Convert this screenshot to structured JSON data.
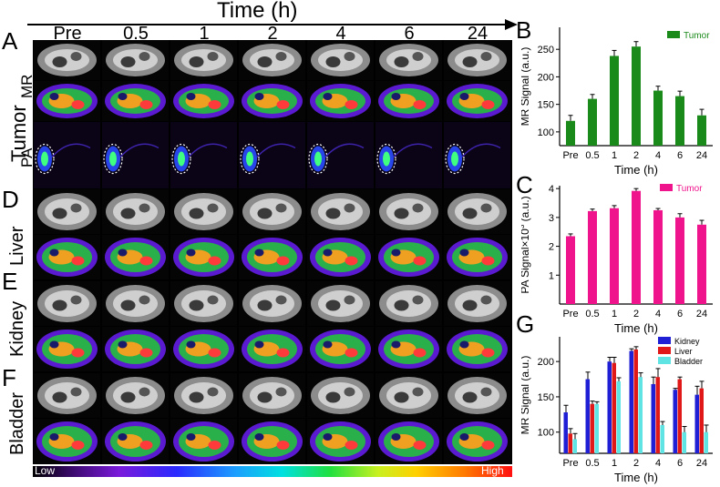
{
  "time_axis_title": "Time (h)",
  "time_points": [
    "Pre",
    "0.5",
    "1",
    "2",
    "4",
    "6",
    "24"
  ],
  "panel_letters": {
    "a": "A",
    "b": "B",
    "c": "C",
    "d": "D",
    "e": "E",
    "f": "F",
    "g": "G"
  },
  "row_labels": {
    "tumor": "Tumor",
    "mr": "MR",
    "pa": "PA",
    "liver": "Liver",
    "kidney": "Kidney",
    "bladder": "Bladder"
  },
  "colorbar": {
    "low": "Low",
    "high": "High"
  },
  "colors": {
    "tumor_bar": "#1a8a1a",
    "pa_bar": "#f0148c",
    "kidney": "#1f1fd6",
    "liver": "#e01818",
    "bladder": "#5fe3e3"
  },
  "chart_data": [
    {
      "type": "bar",
      "panel": "B",
      "categories": [
        "Pre",
        "0.5",
        "1",
        "2",
        "4",
        "6",
        "24"
      ],
      "series": [
        {
          "name": "Tumor",
          "values": [
            120,
            160,
            238,
            255,
            175,
            165,
            130
          ],
          "errors": [
            10,
            8,
            10,
            9,
            8,
            9,
            11
          ]
        }
      ],
      "xlabel": "Time (h)",
      "ylabel": "MR Signal (a.u.)",
      "ylim": [
        75,
        290
      ],
      "yticks": [
        100,
        150,
        200,
        250
      ],
      "legend": "top-right"
    },
    {
      "type": "bar",
      "panel": "C",
      "categories": [
        "Pre",
        "0.5",
        "1",
        "2",
        "4",
        "6",
        "24"
      ],
      "series": [
        {
          "name": "Tumor",
          "values": [
            2.35,
            3.22,
            3.32,
            3.92,
            3.25,
            3.0,
            2.75
          ],
          "errors": [
            0.08,
            0.07,
            0.09,
            0.08,
            0.06,
            0.13,
            0.15
          ]
        }
      ],
      "xlabel": "Time (h)",
      "ylabel": "PA Signal×10",
      "ylabel_superscript": "3",
      "ylabel_unit": " (a.u.)",
      "ylim": [
        0,
        4.1
      ],
      "yticks": [
        1,
        2,
        3,
        4
      ],
      "legend": "top-right"
    },
    {
      "type": "bar",
      "panel": "G",
      "categories": [
        "Pre",
        "0.5",
        "1",
        "2",
        "4",
        "6",
        "24"
      ],
      "series": [
        {
          "name": "Kidney",
          "values": [
            128,
            175,
            200,
            215,
            168,
            160,
            153
          ],
          "errors": [
            10,
            10,
            6,
            3,
            10,
            2,
            12
          ]
        },
        {
          "name": "Liver",
          "values": [
            98,
            140,
            198,
            217,
            178,
            175,
            162
          ],
          "errors": [
            7,
            4,
            8,
            4,
            12,
            3,
            10
          ]
        },
        {
          "name": "Bladder",
          "values": [
            90,
            140,
            172,
            178,
            110,
            100,
            100
          ],
          "errors": [
            8,
            3,
            5,
            6,
            5,
            8,
            10
          ]
        }
      ],
      "xlabel": "Time (h)",
      "ylabel": "MR Signal (a.u.)",
      "ylim": [
        70,
        235
      ],
      "yticks": [
        100,
        150,
        200
      ],
      "legend": "top-right"
    }
  ]
}
